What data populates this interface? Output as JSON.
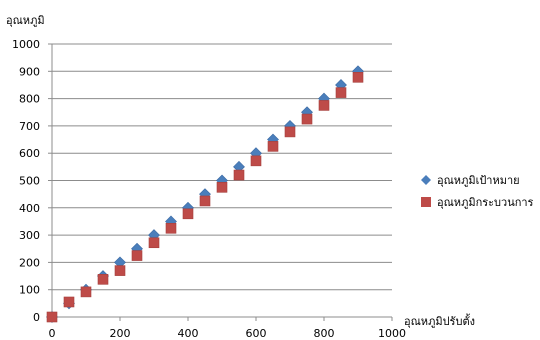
{
  "chart_data": {
    "type": "scatter",
    "title": "",
    "xlabel": "อุณหภูมิปรับตั้ง",
    "ylabel": "อุณหภูมิ",
    "xlim": [
      0,
      1000
    ],
    "ylim": [
      0,
      1000
    ],
    "x_ticks": [
      0,
      200,
      400,
      600,
      800,
      1000
    ],
    "y_ticks": [
      0,
      100,
      200,
      300,
      400,
      500,
      600,
      700,
      800,
      900,
      1000
    ],
    "grid": "horizontal",
    "legend_position": "right",
    "series": [
      {
        "name": "อุณหภูมิเป้าหมาย",
        "marker": "diamond",
        "color": "#4a7ebb",
        "points": [
          [
            0,
            0
          ],
          [
            50,
            50
          ],
          [
            100,
            100
          ],
          [
            150,
            150
          ],
          [
            200,
            200
          ],
          [
            250,
            250
          ],
          [
            300,
            300
          ],
          [
            350,
            350
          ],
          [
            400,
            400
          ],
          [
            450,
            450
          ],
          [
            500,
            500
          ],
          [
            550,
            550
          ],
          [
            600,
            600
          ],
          [
            650,
            650
          ],
          [
            700,
            700
          ],
          [
            750,
            750
          ],
          [
            800,
            800
          ],
          [
            850,
            850
          ],
          [
            900,
            900
          ]
        ]
      },
      {
        "name": "อุณหภูมิกระบวนการ",
        "marker": "square",
        "color": "#be4b48",
        "points": [
          [
            0,
            0
          ],
          [
            50,
            55
          ],
          [
            100,
            92
          ],
          [
            150,
            138
          ],
          [
            200,
            170
          ],
          [
            250,
            225
          ],
          [
            300,
            272
          ],
          [
            350,
            325
          ],
          [
            400,
            378
          ],
          [
            450,
            425
          ],
          [
            500,
            475
          ],
          [
            550,
            520
          ],
          [
            600,
            572
          ],
          [
            650,
            625
          ],
          [
            700,
            678
          ],
          [
            750,
            725
          ],
          [
            800,
            775
          ],
          [
            850,
            822
          ],
          [
            900,
            878
          ]
        ]
      }
    ]
  }
}
